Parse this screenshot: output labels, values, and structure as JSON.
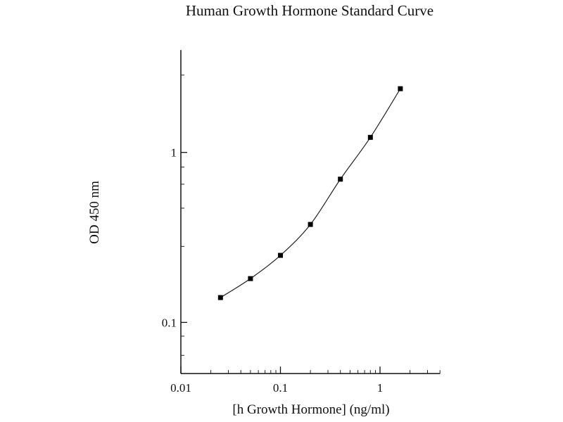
{
  "chart_data": {
    "type": "line",
    "title": "Human Growth Hormone Standard Curve",
    "xlabel": "[h Growth Hormone] (ng/ml)",
    "ylabel": "OD 450 nm",
    "xscale": "log",
    "yscale": "log",
    "xlim": [
      0.01,
      4
    ],
    "ylim": [
      0.05,
      4
    ],
    "xticks": [
      {
        "value": 0.01,
        "label": "0.01"
      },
      {
        "value": 0.1,
        "label": "0.1"
      },
      {
        "value": 1,
        "label": "1"
      }
    ],
    "yticks": [
      {
        "value": 0.1,
        "label": "0.1"
      },
      {
        "value": 1,
        "label": "1"
      }
    ],
    "grid": false,
    "marker": "square",
    "line_style": "smooth",
    "color": "#000000",
    "series": [
      {
        "x": [
          0.025,
          0.05,
          0.1,
          0.2,
          0.4,
          0.8,
          1.6
        ],
        "y": [
          0.14,
          0.181,
          0.248,
          0.377,
          0.696,
          1.226,
          2.37
        ]
      }
    ]
  }
}
